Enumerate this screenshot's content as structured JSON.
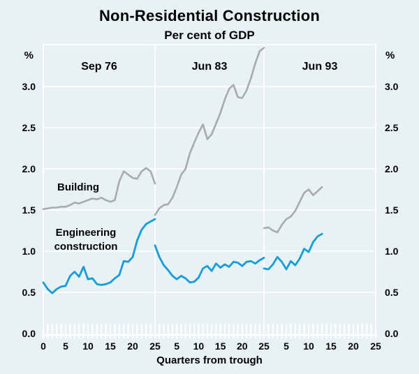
{
  "title": "Non-Residential Construction",
  "subtitle": "Per cent of GDP",
  "chart_data": {
    "type": "line",
    "title": "Non-Residential Construction",
    "subtitle": "Per cent of GDP",
    "xlabel": "Quarters from trough",
    "ylabel": "%",
    "yunit_left": "%",
    "yunit_right": "%",
    "ylim": [
      0.0,
      3.5
    ],
    "y_ticks": [
      "0.0",
      "0.5",
      "1.0",
      "1.5",
      "2.0",
      "2.5",
      "3.0"
    ],
    "grid": true,
    "legend_position": "inline-annotations",
    "colors": {
      "building": "#a8abad",
      "engineering": "#149ddb",
      "background": "#e8f2f6",
      "gridline": "#ffffff",
      "text": "#000000"
    },
    "annotations": [
      {
        "text": "Building",
        "series": "building"
      },
      {
        "text_line1": "Engineering",
        "text_line2": "construction",
        "series": "engineering"
      }
    ],
    "panels": [
      {
        "label": "Sep 76",
        "x_tick_labels": [
          0,
          5,
          10,
          15,
          20,
          25
        ],
        "x_start": 0,
        "x_step": 1,
        "series": [
          {
            "name": "Building",
            "values": [
              1.51,
              1.52,
              1.53,
              1.53,
              1.54,
              1.54,
              1.56,
              1.59,
              1.58,
              1.6,
              1.62,
              1.64,
              1.63,
              1.65,
              1.62,
              1.6,
              1.62,
              1.85,
              1.97,
              1.93,
              1.89,
              1.88,
              1.97,
              2.01,
              1.97,
              1.82
            ]
          },
          {
            "name": "Engineering construction",
            "values": [
              0.62,
              0.54,
              0.49,
              0.54,
              0.57,
              0.58,
              0.7,
              0.75,
              0.69,
              0.81,
              0.66,
              0.67,
              0.6,
              0.59,
              0.6,
              0.62,
              0.67,
              0.71,
              0.88,
              0.87,
              0.93,
              1.13,
              1.26,
              1.33,
              1.36,
              1.39
            ]
          }
        ]
      },
      {
        "label": "Jun 83",
        "x_tick_labels": [
          5,
          10,
          15,
          20,
          25
        ],
        "x_start": 0,
        "x_step": 1,
        "series": [
          {
            "name": "Building",
            "values": [
              1.44,
              1.52,
              1.56,
              1.57,
              1.65,
              1.78,
              1.93,
              2.0,
              2.19,
              2.32,
              2.44,
              2.54,
              2.36,
              2.42,
              2.55,
              2.68,
              2.84,
              2.97,
              3.02,
              2.87,
              2.86,
              2.95,
              3.1,
              3.28,
              3.43,
              3.47
            ]
          },
          {
            "name": "Engineering construction",
            "values": [
              1.07,
              0.93,
              0.83,
              0.77,
              0.7,
              0.66,
              0.7,
              0.67,
              0.62,
              0.63,
              0.68,
              0.79,
              0.82,
              0.76,
              0.85,
              0.8,
              0.84,
              0.81,
              0.87,
              0.86,
              0.82,
              0.87,
              0.88,
              0.85,
              0.89,
              0.92
            ]
          }
        ]
      },
      {
        "label": "Jun 93",
        "x_tick_labels": [
          5,
          10,
          15,
          20,
          25
        ],
        "x_start": 0,
        "x_step": 1,
        "series": [
          {
            "name": "Building",
            "values": [
              1.28,
              1.29,
              1.25,
              1.23,
              1.32,
              1.39,
              1.42,
              1.49,
              1.6,
              1.71,
              1.75,
              1.68,
              1.73,
              1.78
            ]
          },
          {
            "name": "Engineering construction",
            "values": [
              0.79,
              0.78,
              0.84,
              0.93,
              0.87,
              0.78,
              0.88,
              0.83,
              0.91,
              1.03,
              0.99,
              1.11,
              1.18,
              1.21
            ]
          }
        ]
      }
    ]
  }
}
